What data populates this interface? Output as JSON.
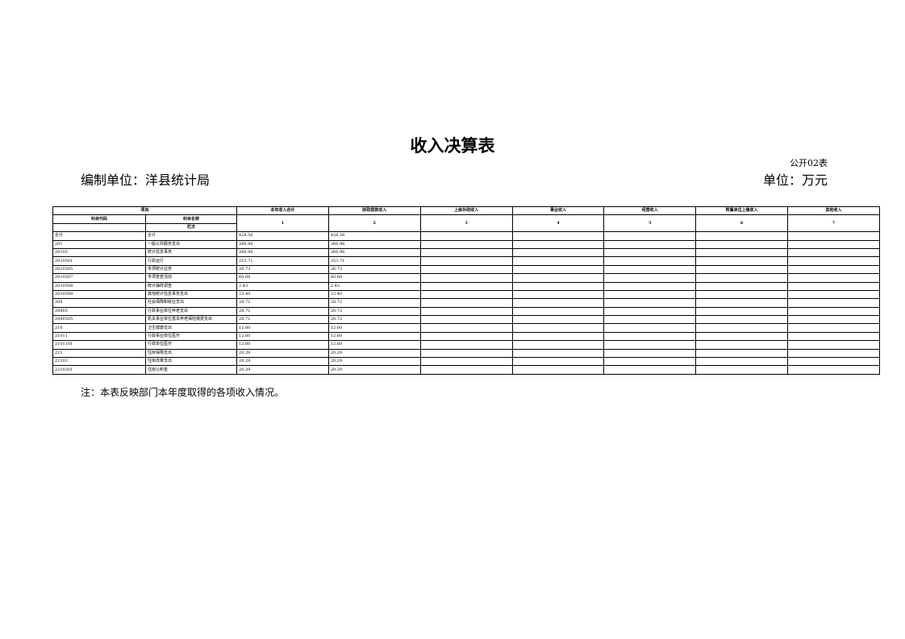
{
  "title": "收入决算表",
  "form_code": "公开02表",
  "unit_org": "编制单位：洋县统计局",
  "unit_currency": "单位：万元",
  "headers": {
    "item": "项目",
    "code": "科目代码",
    "name": "科目名称",
    "lanci": "栏次",
    "cols": [
      "本年收入合计",
      "财政拨款收入",
      "上级补助收入",
      "事业收入",
      "经营收入",
      "附属单位上缴收入",
      "其他收入"
    ],
    "col_nums": [
      "1",
      "2",
      "3",
      "4",
      "5",
      "6",
      "7"
    ]
  },
  "rows": [
    [
      "合计",
      "合计",
      "428.56",
      "428.56"
    ],
    [
      "201",
      "一般公共服务支出",
      "366.96",
      "366.96"
    ],
    [
      "20105",
      "统计信息事务",
      "366.96",
      "366.96"
    ],
    [
      "2010501",
      "行政运行",
      "253.71",
      "253.71"
    ],
    [
      "2010505",
      "专项统计业务",
      "26.73",
      "26.73"
    ],
    [
      "2010507",
      "专项普查活动",
      "60.68",
      "60.68"
    ],
    [
      "2010508",
      "统计抽样调查",
      "2.43",
      "2.43"
    ],
    [
      "2010599",
      "其他统计信息事务支出",
      "23.40",
      "23.40"
    ],
    [
      "208",
      "社会保障和就业支出",
      "28.72",
      "28.72"
    ],
    [
      "20805",
      "行政事业单位养老支出",
      "28.72",
      "28.72"
    ],
    [
      "2080505",
      "机关事业单位基本养老保险缴费支出",
      "28.72",
      "28.72"
    ],
    [
      "210",
      "卫生健康支出",
      "12.60",
      "12.60"
    ],
    [
      "21011",
      "行政事业单位医疗",
      "12.60",
      "12.60"
    ],
    [
      "2101101",
      "行政单位医疗",
      "12.60",
      "12.60"
    ],
    [
      "221",
      "住房保障支出",
      "20.29",
      "20.29"
    ],
    [
      "22102",
      "住房改革支出",
      "20.29",
      "20.29"
    ],
    [
      "2210201",
      "住房公积金",
      "20.29",
      "20.29"
    ]
  ],
  "note": "注：本表反映部门本年度取得的各项收入情况。"
}
